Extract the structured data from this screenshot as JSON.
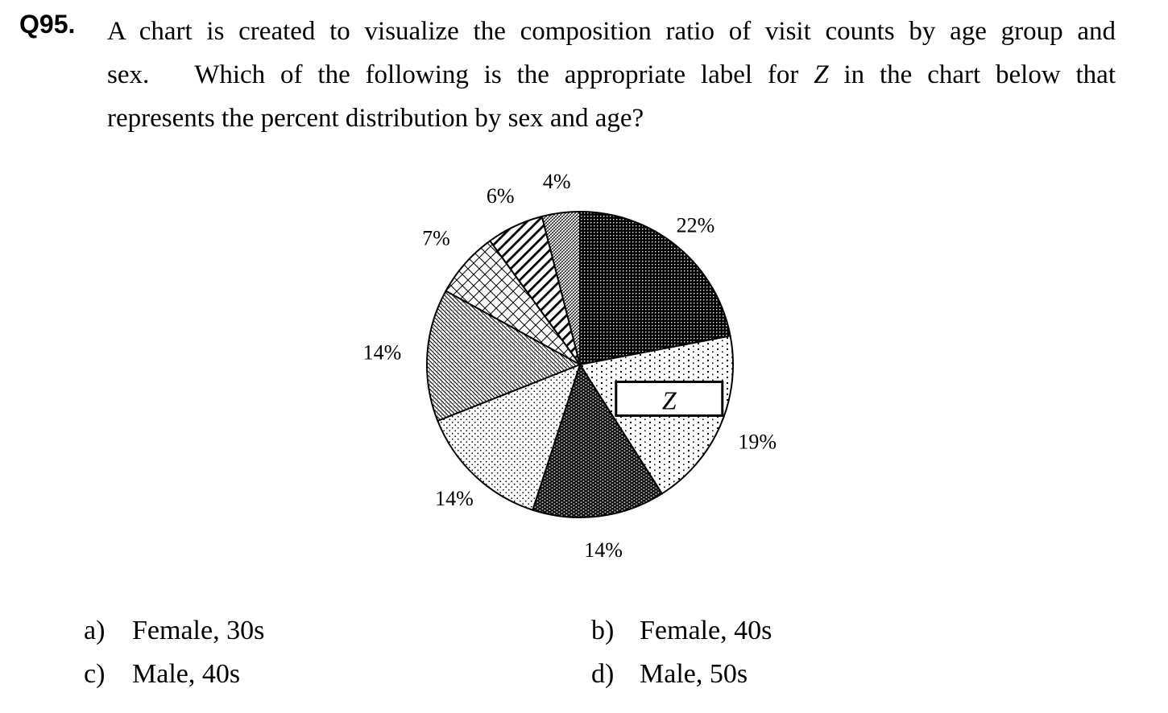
{
  "question": {
    "number": "Q95.",
    "line1": "A chart is created to visualize the composition ratio of visit counts by age group and",
    "line2_pre": "sex.   Which of the following is the appropriate label for ",
    "line2_var": "Z",
    "line2_post": " in the chart below that",
    "line3": "represents the percent distribution by sex and age?"
  },
  "chart_data": {
    "type": "pie",
    "slices": [
      {
        "label": "22%",
        "value": 22,
        "pattern": "dense-dots"
      },
      {
        "label": "19%",
        "value": 19,
        "pattern": "sparse-dots",
        "inner_label": "Z"
      },
      {
        "label": "14%",
        "value": 14,
        "pattern": "dark-checker"
      },
      {
        "label": "14%",
        "value": 14,
        "pattern": "light-dots"
      },
      {
        "label": "14%",
        "value": 14,
        "pattern": "diagonal-hatch"
      },
      {
        "label": "7%",
        "value": 7,
        "pattern": "crosshatch"
      },
      {
        "label": "6%",
        "value": 6,
        "pattern": "diagonal-lines"
      },
      {
        "label": "4%",
        "value": 4,
        "pattern": "fine-hatch"
      }
    ],
    "start": "12 o'clock",
    "direction": "clockwise"
  },
  "choices": [
    {
      "letter": "a)",
      "text": "Female, 30s"
    },
    {
      "letter": "b)",
      "text": "Female, 40s"
    },
    {
      "letter": "c)",
      "text": "Male, 40s"
    },
    {
      "letter": "d)",
      "text": "Male, 50s"
    }
  ]
}
